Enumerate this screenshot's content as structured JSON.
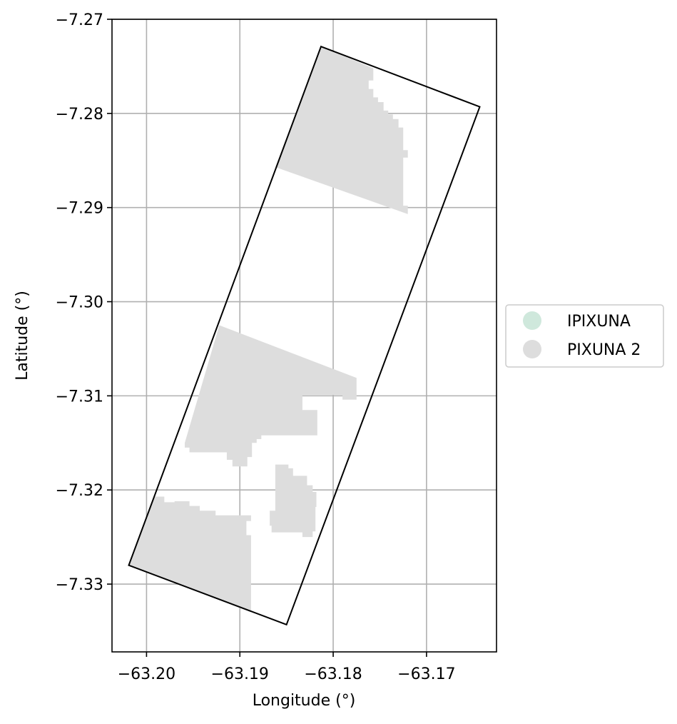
{
  "chart_data": {
    "type": "map",
    "title": "",
    "xlabel": "Longitude (°)",
    "ylabel": "Latitude (°)",
    "xlim": [
      -63.2037,
      -63.1625
    ],
    "ylim": [
      -7.3372,
      -7.27
    ],
    "grid": true,
    "x_ticks": [
      -63.2,
      -63.19,
      -63.18,
      -63.17
    ],
    "y_ticks": [
      -7.27,
      -7.28,
      -7.29,
      -7.3,
      -7.31,
      -7.32,
      -7.33
    ],
    "x_tick_labels": [
      "−63.20",
      "−63.19",
      "−63.18",
      "−63.17"
    ],
    "y_tick_labels": [
      "−7.27",
      "−7.28",
      "−7.29",
      "−7.30",
      "−7.31",
      "−7.32",
      "−7.33"
    ],
    "legend_position": "center-right outside",
    "legend": [
      {
        "label": "IPIXUNA",
        "color": "#cfe8dc"
      },
      {
        "label": "PIXUNA 2",
        "color": "#dddddd"
      }
    ],
    "outline": {
      "name": "scene-footprint",
      "stroke": "#000000",
      "points": [
        [
          -63.1813,
          -7.2729
        ],
        [
          -63.1643,
          -7.2793
        ],
        [
          -63.185,
          -7.3343
        ],
        [
          -63.2019,
          -7.328
        ]
      ]
    },
    "regions": [
      {
        "class": "PIXUNA 2",
        "color": "#dddddd",
        "points": [
          [
            -63.1813,
            -7.2729
          ],
          [
            -63.1757,
            -7.2752
          ],
          [
            -63.1757,
            -7.2765
          ],
          [
            -63.1762,
            -7.2765
          ],
          [
            -63.1762,
            -7.2774
          ],
          [
            -63.1757,
            -7.2774
          ],
          [
            -63.1757,
            -7.2783
          ],
          [
            -63.1752,
            -7.2783
          ],
          [
            -63.1752,
            -7.2788
          ],
          [
            -63.1746,
            -7.2788
          ],
          [
            -63.1746,
            -7.2797
          ],
          [
            -63.1741,
            -7.2797
          ],
          [
            -63.1741,
            -7.2801
          ],
          [
            -63.1736,
            -7.2801
          ],
          [
            -63.1736,
            -7.2806
          ],
          [
            -63.173,
            -7.2806
          ],
          [
            -63.173,
            -7.2815
          ],
          [
            -63.1725,
            -7.2815
          ],
          [
            -63.1725,
            -7.2839
          ],
          [
            -63.172,
            -7.2839
          ],
          [
            -63.172,
            -7.2847
          ],
          [
            -63.1725,
            -7.2847
          ],
          [
            -63.1725,
            -7.2898
          ],
          [
            -63.172,
            -7.2898
          ],
          [
            -63.172,
            -7.2907
          ],
          [
            -63.1862,
            -7.2857
          ]
        ]
      },
      {
        "class": "PIXUNA 2",
        "color": "#dddddd",
        "points": [
          [
            -63.1922,
            -7.3025
          ],
          [
            -63.1775,
            -7.3081
          ],
          [
            -63.1775,
            -7.3104
          ],
          [
            -63.179,
            -7.3104
          ],
          [
            -63.179,
            -7.3099
          ],
          [
            -63.1833,
            -7.3099
          ],
          [
            -63.1833,
            -7.3115
          ],
          [
            -63.1817,
            -7.3115
          ],
          [
            -63.1817,
            -7.3142
          ],
          [
            -63.1877,
            -7.3142
          ],
          [
            -63.1877,
            -7.3146
          ],
          [
            -63.1882,
            -7.3146
          ],
          [
            -63.1882,
            -7.315
          ],
          [
            -63.1887,
            -7.315
          ],
          [
            -63.1887,
            -7.3165
          ],
          [
            -63.1892,
            -7.3165
          ],
          [
            -63.1892,
            -7.3175
          ],
          [
            -63.1908,
            -7.3175
          ],
          [
            -63.1908,
            -7.3168
          ],
          [
            -63.1914,
            -7.3168
          ],
          [
            -63.1914,
            -7.316
          ],
          [
            -63.1954,
            -7.316
          ],
          [
            -63.1954,
            -7.3155
          ],
          [
            -63.1959,
            -7.3155
          ],
          [
            -63.1959,
            -7.315
          ]
        ]
      },
      {
        "class": "PIXUNA 2",
        "color": "#dddddd",
        "points": [
          [
            -63.1862,
            -7.3173
          ],
          [
            -63.1848,
            -7.3173
          ],
          [
            -63.1848,
            -7.3177
          ],
          [
            -63.1843,
            -7.3177
          ],
          [
            -63.1843,
            -7.3185
          ],
          [
            -63.1828,
            -7.3185
          ],
          [
            -63.1828,
            -7.3195
          ],
          [
            -63.1822,
            -7.3195
          ],
          [
            -63.1822,
            -7.3202
          ],
          [
            -63.1818,
            -7.3202
          ],
          [
            -63.1818,
            -7.3218
          ],
          [
            -63.1819,
            -7.3218
          ],
          [
            -63.1819,
            -7.3244
          ],
          [
            -63.1822,
            -7.3244
          ],
          [
            -63.1822,
            -7.325
          ],
          [
            -63.1833,
            -7.325
          ],
          [
            -63.1833,
            -7.3245
          ],
          [
            -63.1866,
            -7.3245
          ],
          [
            -63.1866,
            -7.3238
          ],
          [
            -63.1868,
            -7.3238
          ],
          [
            -63.1868,
            -7.3222
          ],
          [
            -63.1862,
            -7.3222
          ]
        ]
      },
      {
        "class": "PIXUNA 2",
        "color": "#dddddd",
        "points": [
          [
            -63.1981,
            -7.3207
          ],
          [
            -63.1992,
            -7.3207
          ],
          [
            -63.2019,
            -7.328
          ],
          [
            -63.1888,
            -7.333
          ],
          [
            -63.1888,
            -7.3248
          ],
          [
            -63.1893,
            -7.3248
          ],
          [
            -63.1893,
            -7.3233
          ],
          [
            -63.1888,
            -7.3233
          ],
          [
            -63.1888,
            -7.3227
          ],
          [
            -63.1926,
            -7.3227
          ],
          [
            -63.1926,
            -7.3222
          ],
          [
            -63.1943,
            -7.3222
          ],
          [
            -63.1943,
            -7.3217
          ],
          [
            -63.1954,
            -7.3217
          ],
          [
            -63.1954,
            -7.3212
          ],
          [
            -63.197,
            -7.3212
          ],
          [
            -63.197,
            -7.3213
          ],
          [
            -63.1981,
            -7.3213
          ]
        ]
      }
    ]
  }
}
